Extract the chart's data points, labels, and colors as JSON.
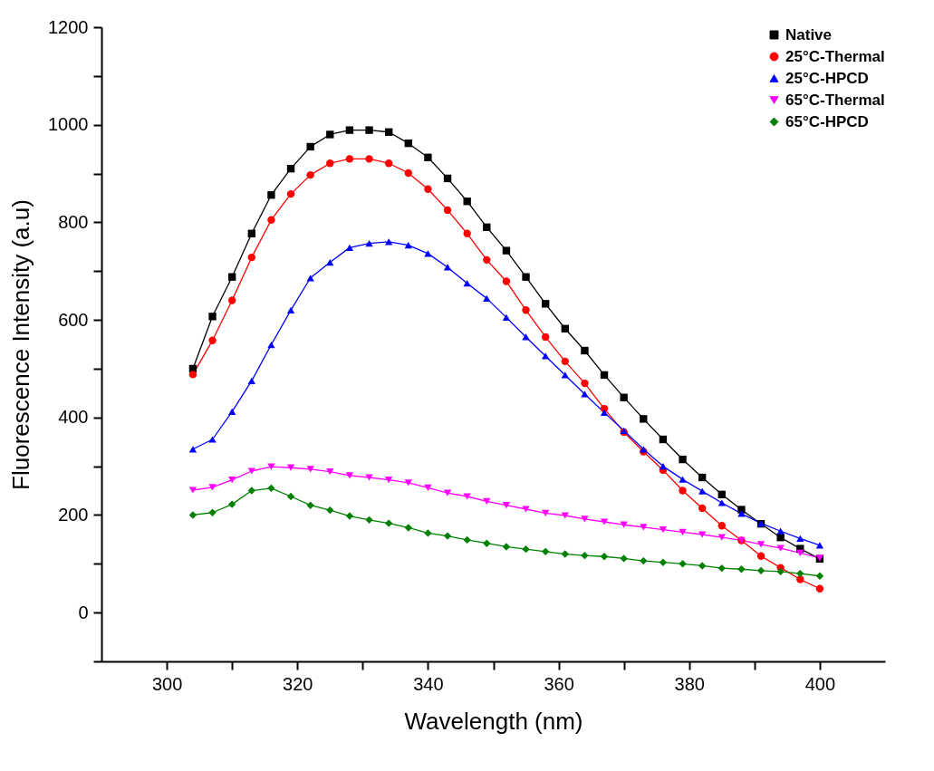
{
  "chart_data": {
    "type": "line",
    "xlabel": "Wavelength (nm)",
    "ylabel": "Fluorescence Intensity (a.u)",
    "x": [
      304,
      307,
      310,
      313,
      316,
      319,
      322,
      325,
      328,
      331,
      334,
      337,
      340,
      343,
      346,
      349,
      352,
      355,
      358,
      361,
      364,
      367,
      370,
      373,
      376,
      379,
      382,
      385,
      388,
      391,
      394,
      397,
      400
    ],
    "series": [
      {
        "name": "Native",
        "color": "#000000",
        "marker": "square",
        "values": [
          500,
          607,
          688,
          777,
          856,
          910,
          955,
          980,
          989,
          989,
          985,
          962,
          933,
          890,
          843,
          790,
          742,
          688,
          633,
          582,
          537,
          487,
          441,
          397,
          355,
          314,
          277,
          242,
          211,
          182,
          154,
          131,
          110
        ]
      },
      {
        "name": "25°C-Thermal",
        "color": "#ff0000",
        "marker": "circle",
        "values": [
          488,
          558,
          640,
          728,
          805,
          858,
          897,
          921,
          930,
          930,
          921,
          901,
          868,
          825,
          777,
          723,
          679,
          620,
          565,
          515,
          470,
          418,
          370,
          330,
          292,
          250,
          214,
          178,
          148,
          116,
          92,
          68,
          49
        ]
      },
      {
        "name": "25°C-HPCD",
        "color": "#0000ff",
        "marker": "triangle",
        "values": [
          335,
          355,
          412,
          475,
          549,
          620,
          686,
          718,
          748,
          757,
          760,
          753,
          736,
          708,
          675,
          644,
          605,
          565,
          526,
          487,
          448,
          410,
          373,
          335,
          300,
          273,
          249,
          225,
          203,
          183,
          167,
          152,
          138
        ]
      },
      {
        "name": "65°C-Thermal",
        "color": "#ff00ff",
        "marker": "triangle-down",
        "values": [
          251,
          257,
          272,
          290,
          299,
          297,
          294,
          289,
          281,
          277,
          272,
          266,
          256,
          245,
          238,
          228,
          220,
          212,
          204,
          199,
          192,
          186,
          180,
          175,
          170,
          165,
          160,
          154,
          148,
          140,
          132,
          122,
          112
        ]
      },
      {
        "name": "65°C-HPCD",
        "color": "#008000",
        "marker": "diamond",
        "values": [
          200,
          205,
          222,
          250,
          255,
          238,
          220,
          210,
          198,
          190,
          183,
          174,
          163,
          157,
          149,
          142,
          135,
          130,
          125,
          120,
          117,
          115,
          111,
          106,
          103,
          100,
          96,
          91,
          89,
          86,
          84,
          80,
          75
        ]
      }
    ],
    "xlim": [
      290,
      410
    ],
    "xticks": [
      300,
      {
        "value": 310,
        "label": null
      },
      320,
      {
        "value": 330,
        "label": null
      },
      340,
      {
        "value": 350,
        "label": null
      },
      360,
      {
        "value": 370,
        "label": null
      },
      380,
      {
        "value": 390,
        "label": null
      },
      400
    ],
    "ylim": [
      -100,
      1200
    ],
    "yticks": [
      {
        "value": -100,
        "label": null
      },
      0,
      {
        "value": 100,
        "label": null
      },
      200,
      {
        "value": 300,
        "label": null
      },
      400,
      {
        "value": 500,
        "label": null
      },
      600,
      {
        "value": 700,
        "label": null
      },
      800,
      {
        "value": 900,
        "label": null
      },
      1000,
      {
        "value": 1100,
        "label": null
      },
      1200
    ],
    "grid": false,
    "legend": "top right",
    "line_style": "solid"
  }
}
